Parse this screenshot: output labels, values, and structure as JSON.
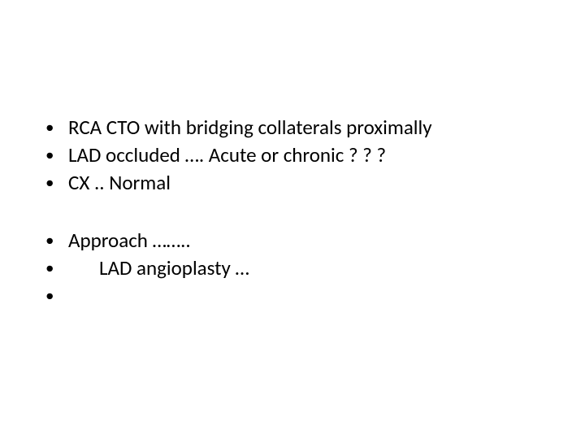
{
  "slide": {
    "background_color": "#ffffff",
    "text_color": "#000000",
    "font_family": "Calibri",
    "font_size_pt": 25,
    "bullet_char": "•",
    "groups": [
      {
        "items": [
          {
            "text": "RCA CTO with bridging collaterals proximally",
            "indent": 0
          },
          {
            "text": "LAD occluded …. Acute or chronic ? ? ?",
            "indent": 0
          },
          {
            "text": "CX ..  Normal",
            "indent": 0
          }
        ]
      },
      {
        "items": [
          {
            "text": "Approach  …….. ",
            "indent": 0
          },
          {
            "text": "LAD  angioplasty …",
            "indent": 1
          },
          {
            "text": "",
            "indent": 0
          }
        ]
      }
    ]
  }
}
